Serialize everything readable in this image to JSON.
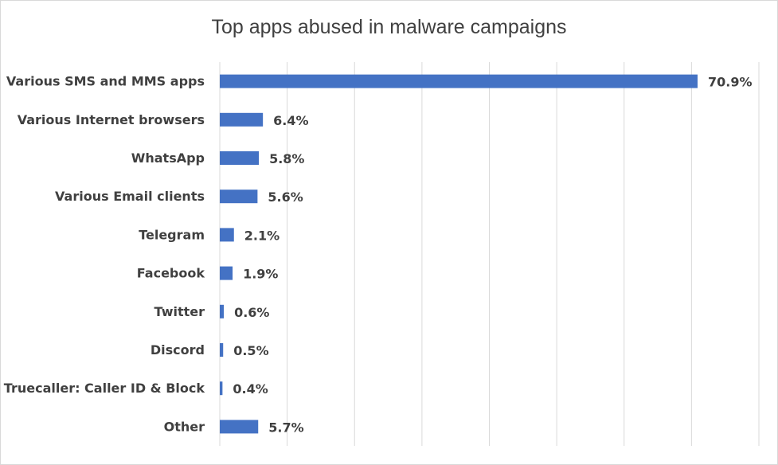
{
  "chart_data": {
    "type": "bar",
    "orientation": "horizontal",
    "title": "Top apps abused in malware campaigns",
    "xlabel": "",
    "ylabel": "",
    "categories": [
      "Various SMS and MMS apps",
      "Various Internet browsers",
      "WhatsApp",
      "Various Email clients",
      "Telegram",
      "Facebook",
      "Twitter",
      "Discord",
      "Truecaller: Caller ID & Block",
      "Other"
    ],
    "values": [
      70.9,
      6.4,
      5.8,
      5.6,
      2.1,
      1.9,
      0.6,
      0.5,
      0.4,
      5.7
    ],
    "value_labels": [
      "70.9%",
      "6.4%",
      "5.8%",
      "5.6%",
      "2.1%",
      "1.9%",
      "0.6%",
      "0.5%",
      "0.4%",
      "5.7%"
    ],
    "xlim": [
      0,
      80
    ],
    "vertical_gridlines": true,
    "legend": "none",
    "bar_color": "#4472c4"
  }
}
